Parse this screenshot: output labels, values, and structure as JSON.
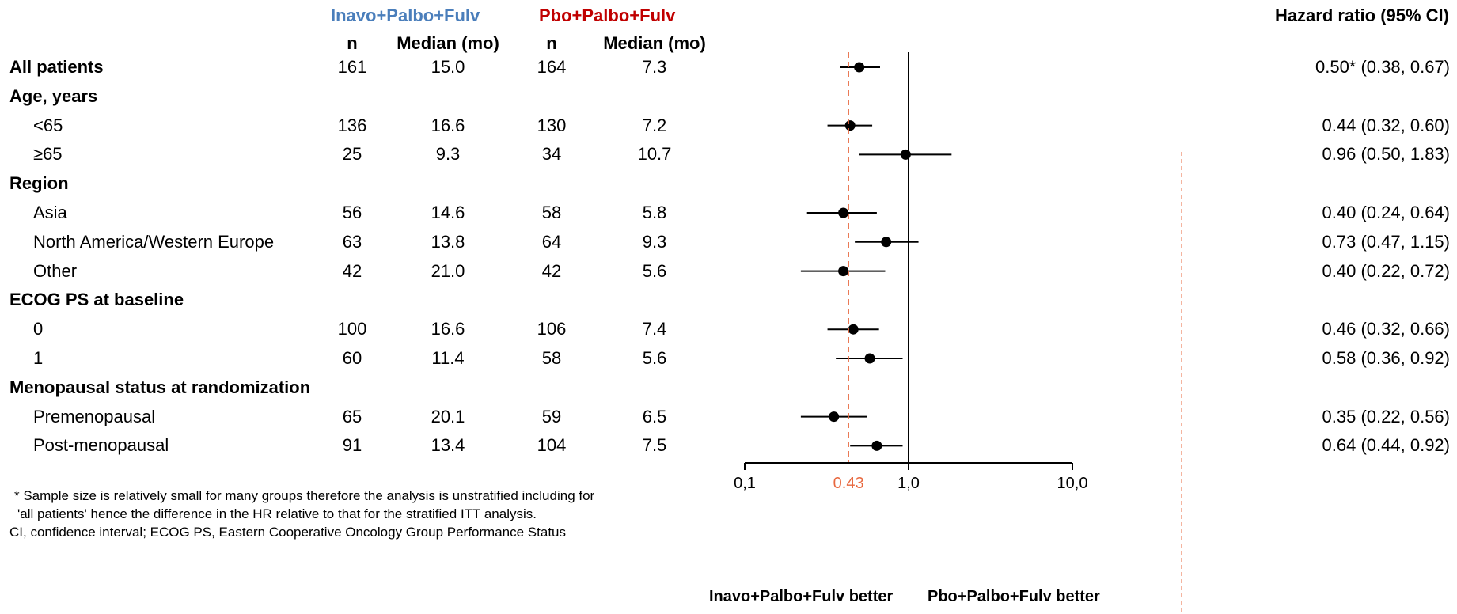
{
  "header": {
    "group_a": "Inavo+Palbo+Fulv",
    "group_b": "Pbo+Palbo+Fulv",
    "n_label": "n",
    "median_label": "Median (mo)",
    "hr_label": "Hazard ratio (95% CI)",
    "group_a_color": "#4a7ebb",
    "group_b_color": "#c00000"
  },
  "footnotes": [
    "* Sample size is relatively small for many groups therefore the analysis is unstratified including for",
    "'all patients' hence the difference in the HR relative to that for the stratified ITT analysis.",
    "CI, confidence interval; ECOG PS, Eastern Cooperative Oncology Group Performance Status"
  ],
  "chart_data": {
    "type": "forest",
    "x_scale": "log",
    "xlim": [
      0.1,
      10
    ],
    "ticks": [
      {
        "value": 0.1,
        "label": "0,1"
      },
      {
        "value": 1,
        "label": "1,0"
      },
      {
        "value": 10,
        "label": "10,0"
      }
    ],
    "reference_value": 1,
    "highlight_value": 0.43,
    "highlight_label": "0.43",
    "highlight_color": "#e8683f",
    "favor_left": "Inavo+Palbo+Fulv better",
    "favor_right": "Pbo+Palbo+Fulv better",
    "rows": [
      {
        "label": "All patients",
        "header": true,
        "n_a": "161",
        "med_a": "15.0",
        "n_b": "164",
        "med_b": "7.3",
        "hr": 0.5,
        "lo": 0.38,
        "hi": 0.67,
        "hr_text": "0.50* (0.38, 0.67)"
      },
      {
        "label": "Age, years",
        "header": true
      },
      {
        "label": "<65",
        "header": false,
        "n_a": "136",
        "med_a": "16.6",
        "n_b": "130",
        "med_b": "7.2",
        "hr": 0.44,
        "lo": 0.32,
        "hi": 0.6,
        "hr_text": "0.44 (0.32, 0.60)"
      },
      {
        "label": "≥65",
        "header": false,
        "n_a": "25",
        "med_a": "9.3",
        "n_b": "34",
        "med_b": "10.7",
        "hr": 0.96,
        "lo": 0.5,
        "hi": 1.83,
        "hr_text": "0.96 (0.50, 1.83)"
      },
      {
        "label": "Region",
        "header": true
      },
      {
        "label": "Asia",
        "header": false,
        "n_a": "56",
        "med_a": "14.6",
        "n_b": "58",
        "med_b": "5.8",
        "hr": 0.4,
        "lo": 0.24,
        "hi": 0.64,
        "hr_text": "0.40 (0.24, 0.64)"
      },
      {
        "label": "North America/Western Europe",
        "header": false,
        "n_a": "63",
        "med_a": "13.8",
        "n_b": "64",
        "med_b": "9.3",
        "hr": 0.73,
        "lo": 0.47,
        "hi": 1.15,
        "hr_text": "0.73 (0.47, 1.15)"
      },
      {
        "label": "Other",
        "header": false,
        "n_a": "42",
        "med_a": "21.0",
        "n_b": "42",
        "med_b": "5.6",
        "hr": 0.4,
        "lo": 0.22,
        "hi": 0.72,
        "hr_text": "0.40 (0.22, 0.72)"
      },
      {
        "label": "ECOG PS at baseline",
        "header": true
      },
      {
        "label": "0",
        "header": false,
        "n_a": "100",
        "med_a": "16.6",
        "n_b": "106",
        "med_b": "7.4",
        "hr": 0.46,
        "lo": 0.32,
        "hi": 0.66,
        "hr_text": "0.46 (0.32, 0.66)"
      },
      {
        "label": "1",
        "header": false,
        "n_a": "60",
        "med_a": "11.4",
        "n_b": "58",
        "med_b": "5.6",
        "hr": 0.58,
        "lo": 0.36,
        "hi": 0.92,
        "hr_text": "0.58 (0.36, 0.92)"
      },
      {
        "label": "Menopausal status at randomization",
        "header": true
      },
      {
        "label": "Premenopausal",
        "header": false,
        "n_a": "65",
        "med_a": "20.1",
        "n_b": "59",
        "med_b": "6.5",
        "hr": 0.35,
        "lo": 0.22,
        "hi": 0.56,
        "hr_text": "0.35 (0.22, 0.56)"
      },
      {
        "label": "Post-menopausal",
        "header": false,
        "n_a": "91",
        "med_a": "13.4",
        "n_b": "104",
        "med_b": "7.5",
        "hr": 0.64,
        "lo": 0.44,
        "hi": 0.92,
        "hr_text": "0.64 (0.44, 0.92)"
      }
    ]
  }
}
